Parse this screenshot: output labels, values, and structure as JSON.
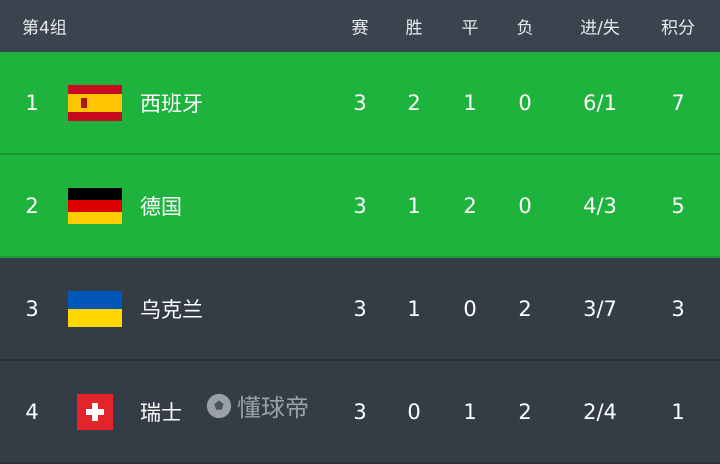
{
  "header": {
    "group": "第4组",
    "cols": [
      "赛",
      "胜",
      "平",
      "负",
      "进/失",
      "积分"
    ]
  },
  "rows": [
    {
      "rank": "1",
      "team": "西班牙",
      "flag": "spain-flag",
      "played": "3",
      "won": "2",
      "drawn": "1",
      "lost": "0",
      "goals": "6/1",
      "points": "7",
      "qualified": true
    },
    {
      "rank": "2",
      "team": "德国",
      "flag": "germany-flag",
      "played": "3",
      "won": "1",
      "drawn": "2",
      "lost": "0",
      "goals": "4/3",
      "points": "5",
      "qualified": true
    },
    {
      "rank": "3",
      "team": "乌克兰",
      "flag": "ukraine-flag",
      "played": "3",
      "won": "1",
      "drawn": "0",
      "lost": "2",
      "goals": "3/7",
      "points": "3",
      "qualified": false
    },
    {
      "rank": "4",
      "team": "瑞士",
      "flag": "switzerland-flag",
      "played": "3",
      "won": "0",
      "drawn": "1",
      "lost": "2",
      "goals": "2/4",
      "points": "1",
      "qualified": false
    }
  ],
  "colors": {
    "qualified": "#1db33d",
    "header": "#3b434e",
    "row": "#343c46"
  },
  "watermark": "懂球帝"
}
